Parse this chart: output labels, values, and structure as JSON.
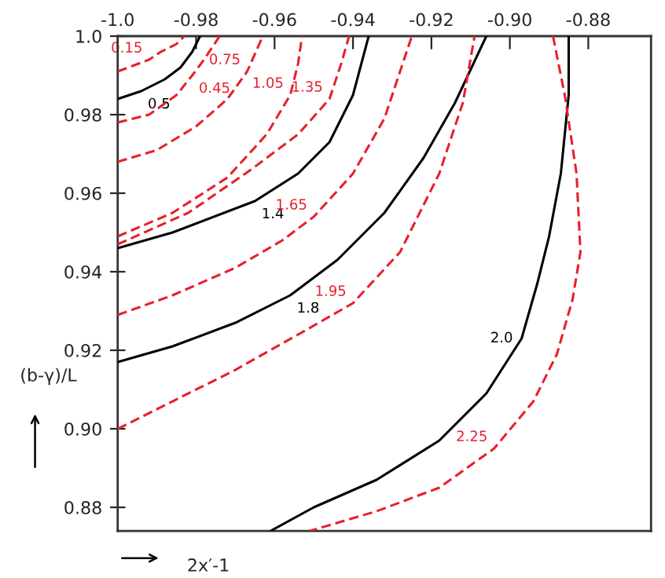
{
  "chart_data": {
    "type": "line",
    "xlabel": "2x′-1",
    "ylabel": "(b-γ)/L",
    "xlim": [
      -1.0,
      -0.864
    ],
    "ylim": [
      0.874,
      1.0
    ],
    "xticks": [
      {
        "value": -1.0,
        "label": "-1.0"
      },
      -0.98,
      -0.96,
      -0.94,
      -0.92,
      {
        "value": -0.9,
        "label": "-0.90"
      },
      -0.88
    ],
    "yticks": [
      0.88,
      {
        "value": 0.9,
        "label": "0.90"
      },
      0.92,
      0.94,
      0.96,
      0.98,
      {
        "value": 1.0,
        "label": "1.0"
      }
    ],
    "grid": false,
    "legend": false,
    "marker": "none",
    "series": [
      {
        "color": "#000000",
        "line_style": "solid",
        "x": [
          -1.0,
          -0.994,
          -0.988,
          -0.984,
          -0.981,
          -0.979
        ],
        "values": [
          0.984,
          0.986,
          0.989,
          0.992,
          0.996,
          1.0
        ]
      },
      {
        "color": "#000000",
        "line_style": "solid",
        "x": [
          -1.0,
          -0.986,
          -0.965,
          -0.954,
          -0.946,
          -0.94,
          -0.936
        ],
        "values": [
          0.946,
          0.95,
          0.958,
          0.965,
          0.973,
          0.985,
          1.0
        ]
      },
      {
        "color": "#000000",
        "line_style": "solid",
        "x": [
          -1.0,
          -0.986,
          -0.97,
          -0.956,
          -0.944,
          -0.932,
          -0.922,
          -0.914,
          -0.906
        ],
        "values": [
          0.917,
          0.921,
          0.927,
          0.934,
          0.943,
          0.955,
          0.969,
          0.983,
          1.0
        ]
      },
      {
        "color": "#000000",
        "line_style": "solid",
        "x": [
          -0.885,
          -0.885,
          -0.887,
          -0.89,
          -0.893,
          -0.897,
          -0.906,
          -0.918,
          -0.934,
          -0.95,
          -0.961
        ],
        "values": [
          1.0,
          0.985,
          0.965,
          0.949,
          0.937,
          0.923,
          0.909,
          0.897,
          0.887,
          0.88,
          0.874
        ]
      },
      {
        "color": "#e8202a",
        "line_style": "dashed",
        "x": [
          -1.0,
          -0.992,
          -0.989,
          -0.985,
          -0.983
        ],
        "values": [
          0.991,
          0.994,
          0.996,
          0.998,
          1.0
        ]
      },
      {
        "color": "#e8202a",
        "line_style": "dashed",
        "x": [
          -1.0,
          -0.992,
          -0.985,
          -0.981,
          -0.978,
          -0.974
        ],
        "values": [
          0.978,
          0.98,
          0.985,
          0.99,
          0.994,
          1.0
        ]
      },
      {
        "color": "#e8202a",
        "line_style": "dashed",
        "x": [
          -1.0,
          -0.99,
          -0.98,
          -0.972,
          -0.967,
          -0.963
        ],
        "values": [
          0.968,
          0.971,
          0.977,
          0.984,
          0.991,
          1.0
        ]
      },
      {
        "color": "#e8202a",
        "line_style": "dashed",
        "x": [
          -1.0,
          -0.986,
          -0.972,
          -0.962,
          -0.956,
          -0.954,
          -0.953
        ],
        "values": [
          0.949,
          0.955,
          0.964,
          0.975,
          0.985,
          0.993,
          1.0
        ]
      },
      {
        "color": "#e8202a",
        "line_style": "dashed",
        "x": [
          -1.0,
          -0.982,
          -0.966,
          -0.954,
          -0.946,
          -0.943,
          -0.941
        ],
        "values": [
          0.947,
          0.955,
          0.966,
          0.975,
          0.984,
          0.993,
          1.0
        ]
      },
      {
        "color": "#e8202a",
        "line_style": "dashed",
        "x": [
          -1.0,
          -0.986,
          -0.97,
          -0.958,
          -0.95,
          -0.94,
          -0.932,
          -0.925
        ],
        "values": [
          0.929,
          0.934,
          0.941,
          0.948,
          0.954,
          0.965,
          0.979,
          1.0
        ]
      },
      {
        "color": "#e8202a",
        "line_style": "dashed",
        "x": [
          -1.0,
          -0.986,
          -0.97,
          -0.954,
          -0.94,
          -0.928,
          -0.918,
          -0.912,
          -0.909
        ],
        "values": [
          0.9,
          0.907,
          0.915,
          0.924,
          0.932,
          0.945,
          0.965,
          0.983,
          1.0
        ]
      },
      {
        "color": "#e8202a",
        "line_style": "dashed",
        "x": [
          -0.889,
          -0.886,
          -0.883,
          -0.882,
          -0.884,
          -0.888,
          -0.894,
          -0.904,
          -0.918,
          -0.934,
          -0.951
        ],
        "values": [
          1.0,
          0.985,
          0.965,
          0.945,
          0.933,
          0.919,
          0.907,
          0.895,
          0.885,
          0.879,
          0.874
        ]
      }
    ],
    "annotations": [
      {
        "text": "0.5",
        "x": -0.994,
        "y": 0.986
      },
      {
        "text": "1.4",
        "x": -0.965,
        "y": 0.958
      },
      {
        "text": "1.8",
        "x": -0.956,
        "y": 0.934
      },
      {
        "text": "2.0",
        "x": -0.897,
        "y": 0.923
      },
      {
        "text": "0.15",
        "x": -0.992,
        "y": 0.994
      },
      {
        "text": "0.45",
        "x": -0.981,
        "y": 0.99
      },
      {
        "text": "0.75",
        "x": -0.967,
        "y": 0.991
      },
      {
        "text": "1.05",
        "x": -0.956,
        "y": 0.985
      },
      {
        "text": "1.35",
        "x": -0.946,
        "y": 0.984
      },
      {
        "text": "1.65",
        "x": -0.95,
        "y": 0.954
      },
      {
        "text": "1.95",
        "x": -0.94,
        "y": 0.932
      },
      {
        "text": "2.25",
        "x": -0.904,
        "y": 0.895
      }
    ]
  }
}
